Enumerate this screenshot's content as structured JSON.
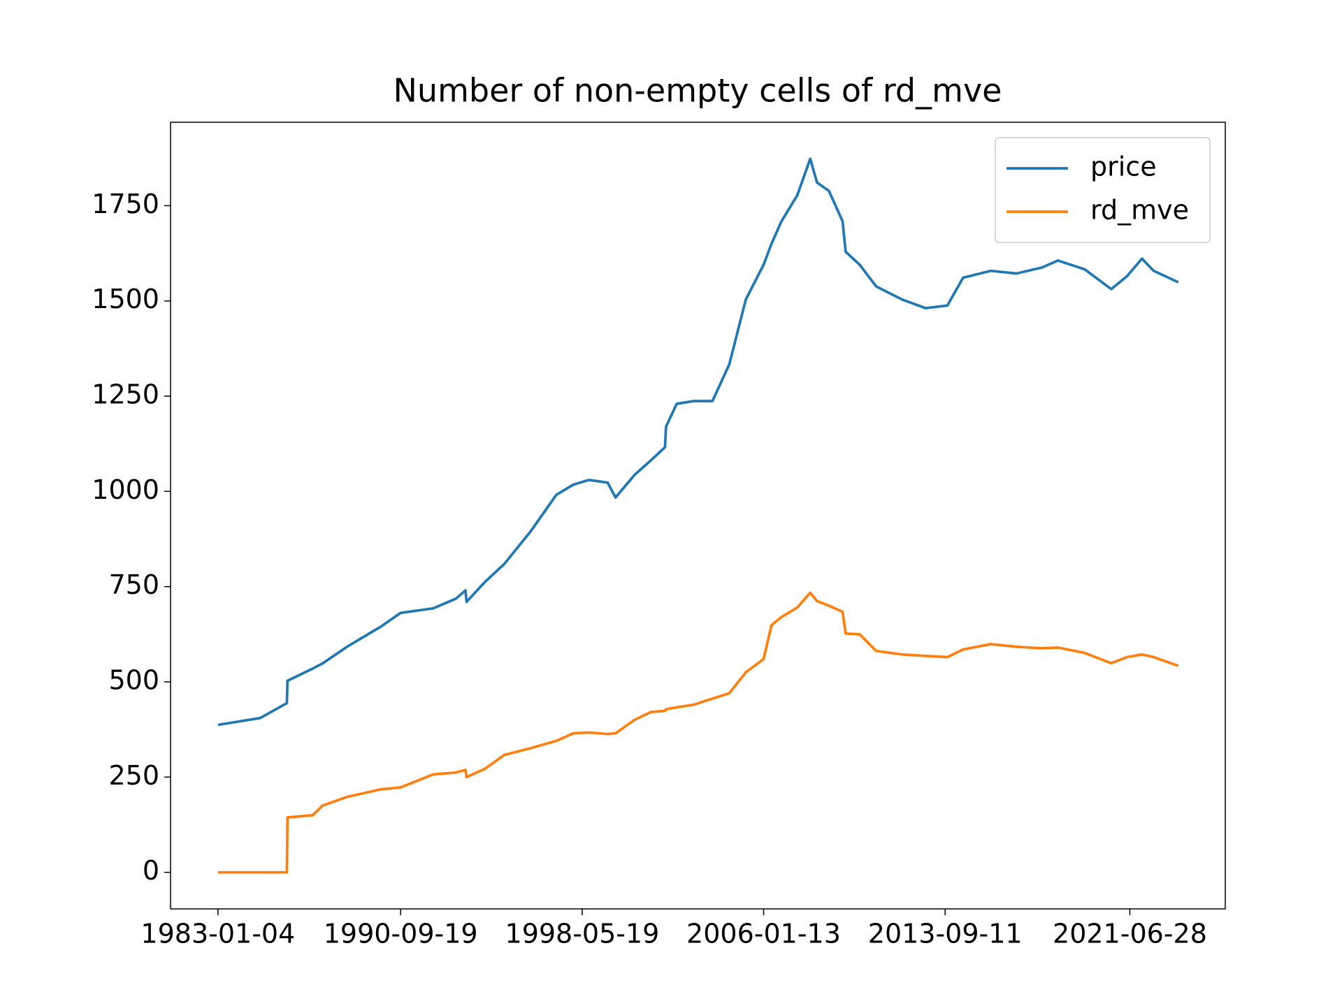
{
  "chart_data": {
    "type": "line",
    "title": "Number of non-empty cells of rd_mve",
    "x": [
      "1983-01-04",
      "1984-10-15",
      "1985-12-01",
      "1985-12-10",
      "1987-01-05",
      "1987-06-01",
      "1988-06-15",
      "1989-11-20",
      "1990-09-19",
      "1992-02-03",
      "1993-01-15",
      "1993-06-15",
      "1993-07-01",
      "1994-04-15",
      "1995-02-01",
      "1996-03-15",
      "1997-04-15",
      "1998-01-05",
      "1998-09-01",
      "1999-06-15",
      "1999-10-15",
      "2000-08-01",
      "2001-04-15",
      "2001-11-15",
      "2001-12-01",
      "2002-05-15",
      "2003-02-01",
      "2003-11-15",
      "2004-08-01",
      "2005-04-15",
      "2006-01-13",
      "2006-05-15",
      "2006-10-15",
      "2007-06-15",
      "2008-01-02",
      "2008-04-15",
      "2008-10-15",
      "2009-05-15",
      "2009-07-01",
      "2010-02-01",
      "2010-10-15",
      "2011-11-15",
      "2012-11-15",
      "2013-10-15",
      "2014-06-15",
      "2015-08-15",
      "2016-09-15",
      "2017-10-15",
      "2018-06-15",
      "2019-08-01",
      "2020-09-15",
      "2021-05-15",
      "2022-01-01",
      "2022-07-01",
      "2023-07-15"
    ],
    "series": [
      {
        "name": "price",
        "color": "#1f77b4",
        "values": [
          387,
          405,
          444,
          503,
          535,
          548,
          592,
          645,
          681,
          693,
          718,
          740,
          710,
          763,
          809,
          895,
          991,
          1018,
          1030,
          1023,
          984,
          1043,
          1082,
          1116,
          1170,
          1230,
          1237,
          1237,
          1333,
          1504,
          1595,
          1650,
          1709,
          1777,
          1873,
          1811,
          1789,
          1709,
          1629,
          1595,
          1538,
          1504,
          1481,
          1488,
          1561,
          1579,
          1572,
          1588,
          1606,
          1583,
          1531,
          1565,
          1611,
          1579,
          1549
        ]
      },
      {
        "name": "rd_mve",
        "color": "#ff7f0e",
        "values": [
          0,
          0,
          0,
          144,
          150,
          175,
          198,
          218,
          223,
          257,
          262,
          269,
          250,
          272,
          308,
          326,
          345,
          365,
          367,
          363,
          365,
          400,
          421,
          424,
          428,
          433,
          440,
          456,
          470,
          525,
          560,
          649,
          670,
          695,
          734,
          712,
          700,
          684,
          627,
          625,
          581,
          572,
          568,
          565,
          585,
          599,
          592,
          588,
          590,
          576,
          549,
          565,
          572,
          565,
          542
        ]
      }
    ],
    "xlim": [
      "1981-01-03",
      "2025-07-08"
    ],
    "xticks": [
      "1983-01-04",
      "1990-09-19",
      "1998-05-19",
      "2006-01-13",
      "2013-09-11",
      "2021-06-28"
    ],
    "ylim": [
      -96,
      1969
    ],
    "yticks": [
      0,
      250,
      500,
      750,
      1000,
      1250,
      1500,
      1750
    ],
    "legend": "upper right"
  }
}
